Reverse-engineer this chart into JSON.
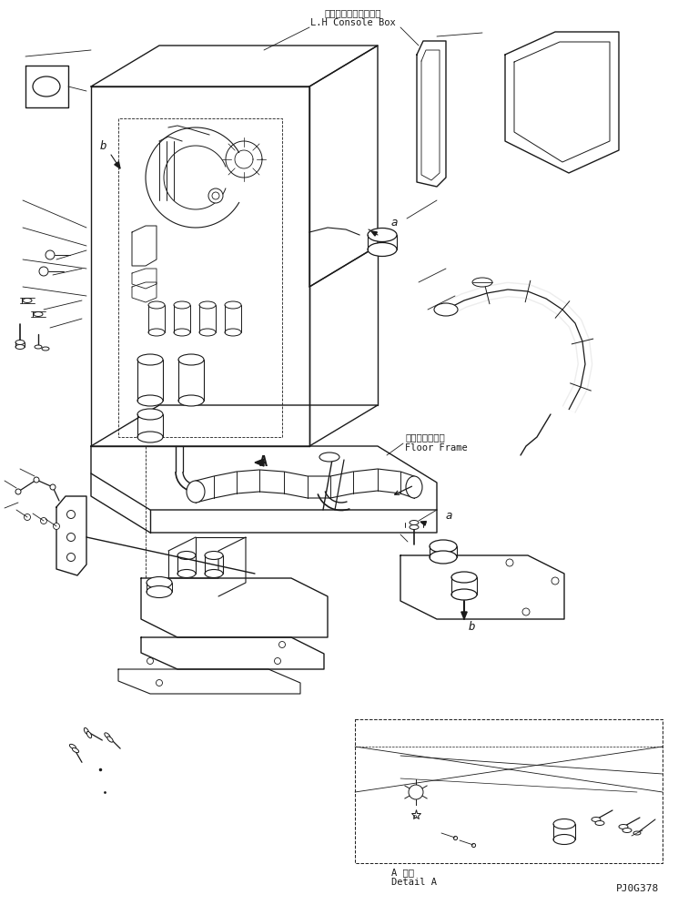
{
  "title_jp": "左コンソールボックス",
  "title_en": "L.H Console Box",
  "label_floor_jp": "フロアフレーム",
  "label_floor_en": "Floor Frame",
  "label_detail_jp": "A 詳細",
  "label_detail_en": "Detail A",
  "part_code": "PJ0G378",
  "label_a": "a",
  "label_b": "b",
  "label_A": "A",
  "bg_color": "#ffffff",
  "line_color": "#1a1a1a",
  "font_size_jp": 7.5,
  "font_size_en": 7.5,
  "font_size_label": 9,
  "font_size_code": 8
}
